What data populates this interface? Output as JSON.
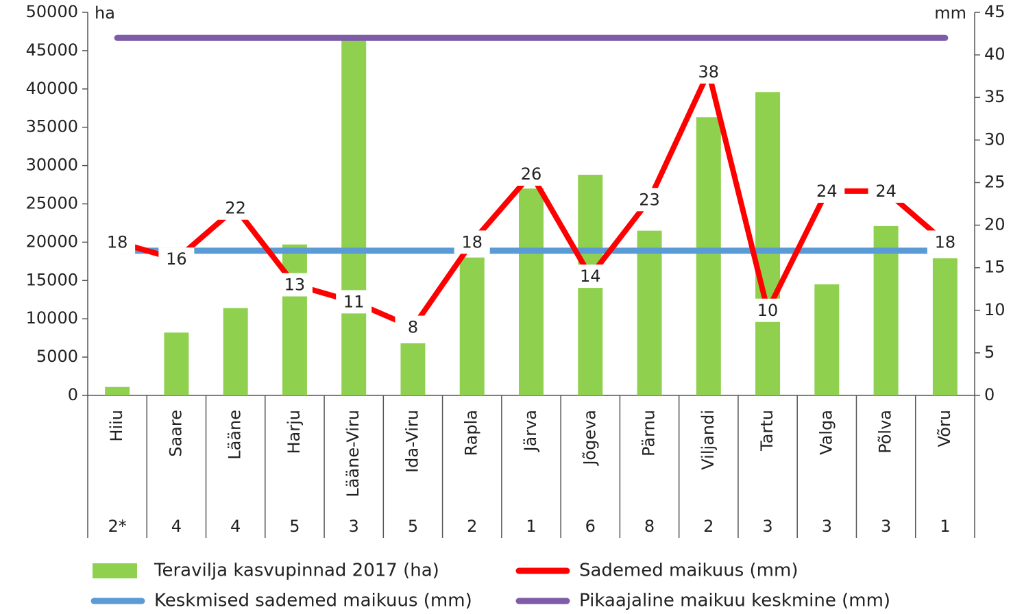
{
  "chart_data": {
    "type": "bar_line",
    "y_unit_label": "ha",
    "y2_unit_label": "mm",
    "categories": [
      "Hiiu",
      "Saare",
      "Lääne",
      "Harju",
      "Lääne-Viru",
      "Ida-Viru",
      "Rapla",
      "Järva",
      "Jõgeva",
      "Pärnu",
      "Viljandi",
      "Tartu",
      "Valga",
      "Põlva",
      "Võru"
    ],
    "category_notes": [
      "2*",
      "4",
      "4",
      "5",
      "3",
      "5",
      "2",
      "1",
      "6",
      "8",
      "2",
      "3",
      "3",
      "3",
      "1"
    ],
    "ylim": [
      0,
      50000
    ],
    "yticks": [
      0,
      5000,
      10000,
      15000,
      20000,
      25000,
      30000,
      35000,
      40000,
      45000,
      50000
    ],
    "y2lim": [
      0,
      45
    ],
    "y2ticks": [
      0,
      5,
      10,
      15,
      20,
      25,
      30,
      35,
      40,
      45
    ],
    "series": [
      {
        "name": "Teravilja kasvupinnad 2017 (ha)",
        "type": "bar",
        "color": "#8fd14f",
        "values": [
          1100,
          8200,
          11400,
          19700,
          46500,
          6800,
          18000,
          27000,
          28800,
          21500,
          36300,
          39600,
          14500,
          22100,
          17900
        ]
      },
      {
        "name": "Sademed maikuus (mm)",
        "type": "line",
        "axis": "y2",
        "color": "#ff0000",
        "data_labels": true,
        "values": [
          18,
          16,
          22,
          13,
          11,
          8,
          18,
          26,
          14,
          23,
          38,
          10,
          24,
          24,
          18
        ]
      },
      {
        "name": "Keskmised sademed maikuus (mm)",
        "type": "line",
        "axis": "y2",
        "color": "#5b9bd5",
        "values": [
          17,
          17,
          17,
          17,
          17,
          17,
          17,
          17,
          17,
          17,
          17,
          17,
          17,
          17,
          17
        ]
      },
      {
        "name": "Pikaajaline maikuu keskmine (mm)",
        "type": "line",
        "axis": "y2",
        "color": "#7e5ca8",
        "values": [
          42,
          42,
          42,
          42,
          42,
          42,
          42,
          42,
          42,
          42,
          42,
          42,
          42,
          42,
          42
        ]
      }
    ]
  }
}
